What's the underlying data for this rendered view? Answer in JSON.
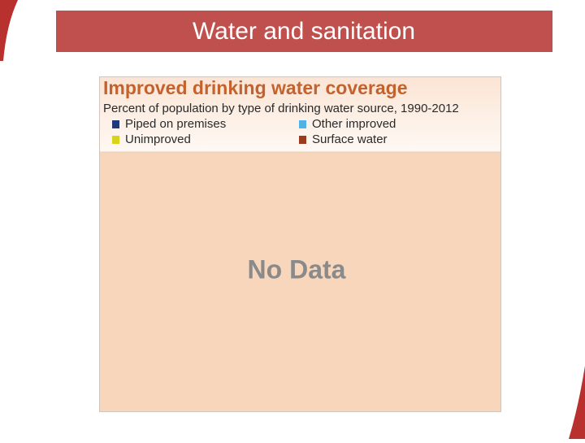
{
  "header": {
    "title": "Water and sanitation"
  },
  "panel": {
    "title": "Improved drinking water coverage",
    "subtitle": "Percent of population by type of drinking water source, 1990-2012",
    "legend": [
      {
        "name": "Piped on premises",
        "color": "#1f3a7a"
      },
      {
        "name": "Unimproved",
        "color": "#d8d21a"
      },
      {
        "name": "Other improved",
        "color": "#4fb3e6"
      },
      {
        "name": "Surface water",
        "color": "#9c3a1e"
      }
    ],
    "message": "No Data"
  }
}
